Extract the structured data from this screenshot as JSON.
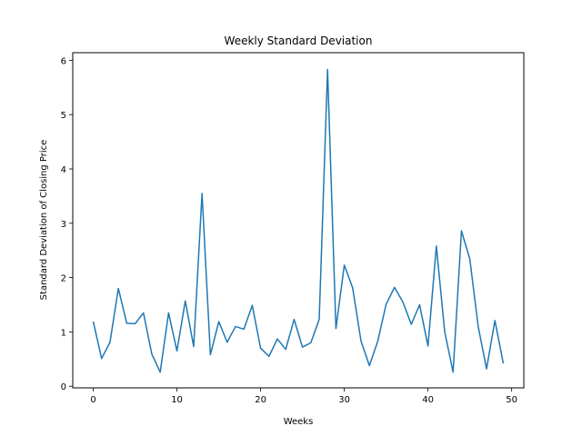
{
  "chart_data": {
    "type": "line",
    "title": "Weekly Standard Deviation",
    "xlabel": "Weeks",
    "ylabel": "Standard Deviation of Closing Price",
    "xlim": [
      -2.45,
      51.45
    ],
    "ylim": [
      -0.03,
      6.14
    ],
    "xticks": [
      0,
      10,
      20,
      30,
      40,
      50
    ],
    "yticks": [
      0,
      1,
      2,
      3,
      4,
      5,
      6
    ],
    "grid": false,
    "line_color": "#1f77b4",
    "x": [
      0,
      1,
      2,
      3,
      4,
      5,
      6,
      7,
      8,
      9,
      10,
      11,
      12,
      13,
      14,
      15,
      16,
      17,
      18,
      19,
      20,
      21,
      22,
      23,
      24,
      25,
      26,
      27,
      28,
      29,
      30,
      31,
      32,
      33,
      34,
      35,
      36,
      37,
      38,
      39,
      40,
      41,
      42,
      43,
      44,
      45,
      46,
      47,
      48,
      49
    ],
    "values": [
      1.19,
      0.51,
      0.81,
      1.8,
      1.16,
      1.15,
      1.35,
      0.59,
      0.26,
      1.35,
      0.65,
      1.57,
      0.73,
      3.55,
      0.58,
      1.19,
      0.81,
      1.1,
      1.05,
      1.49,
      0.7,
      0.55,
      0.87,
      0.68,
      1.23,
      0.72,
      0.8,
      1.23,
      5.83,
      1.06,
      2.23,
      1.81,
      0.83,
      0.38,
      0.83,
      1.51,
      1.82,
      1.55,
      1.14,
      1.5,
      0.74,
      2.58,
      1.0,
      0.26,
      2.86,
      2.34,
      1.1,
      0.32,
      1.21,
      0.42
    ]
  }
}
